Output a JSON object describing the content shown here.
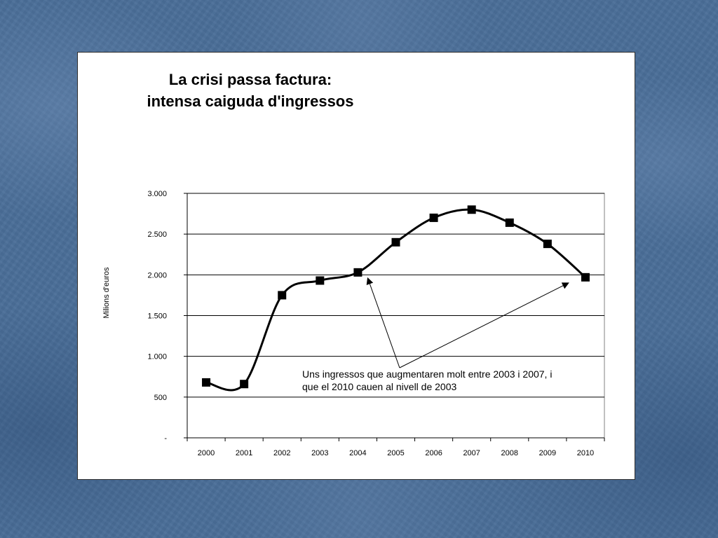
{
  "slide": {
    "background_color": "#4a6e98"
  },
  "chart_data": {
    "type": "line",
    "title_lines": [
      "La crisi passa factura:",
      "intensa caiguda d'ingressos"
    ],
    "xlabel": "",
    "ylabel": "Milions d'euros",
    "categories": [
      "2000",
      "2001",
      "2002",
      "2003",
      "2004",
      "2005",
      "2006",
      "2007",
      "2008",
      "2009",
      "2010"
    ],
    "series": [
      {
        "values": [
          680,
          660,
          1750,
          1930,
          2030,
          2400,
          2700,
          2800,
          2640,
          2380,
          1970
        ],
        "color": "#000000",
        "marker": "square",
        "smooth": true
      }
    ],
    "ylim": [
      0,
      3000
    ],
    "yticks": [
      0,
      500,
      1000,
      1500,
      2000,
      2500,
      3000
    ],
    "ytick_labels": [
      "-",
      "500",
      "1.000",
      "1.500",
      "2.000",
      "2.500",
      "3.000"
    ],
    "grid": {
      "horizontal": true,
      "vertical": false
    },
    "legend": "none",
    "annotation": {
      "lines": [
        "Uns ingressos que augmentaren molt entre 2003 i 2007, i",
        "que el 2010 cauen al nivell de 2003"
      ],
      "arrow_targets": [
        "2004",
        "2010"
      ]
    }
  }
}
